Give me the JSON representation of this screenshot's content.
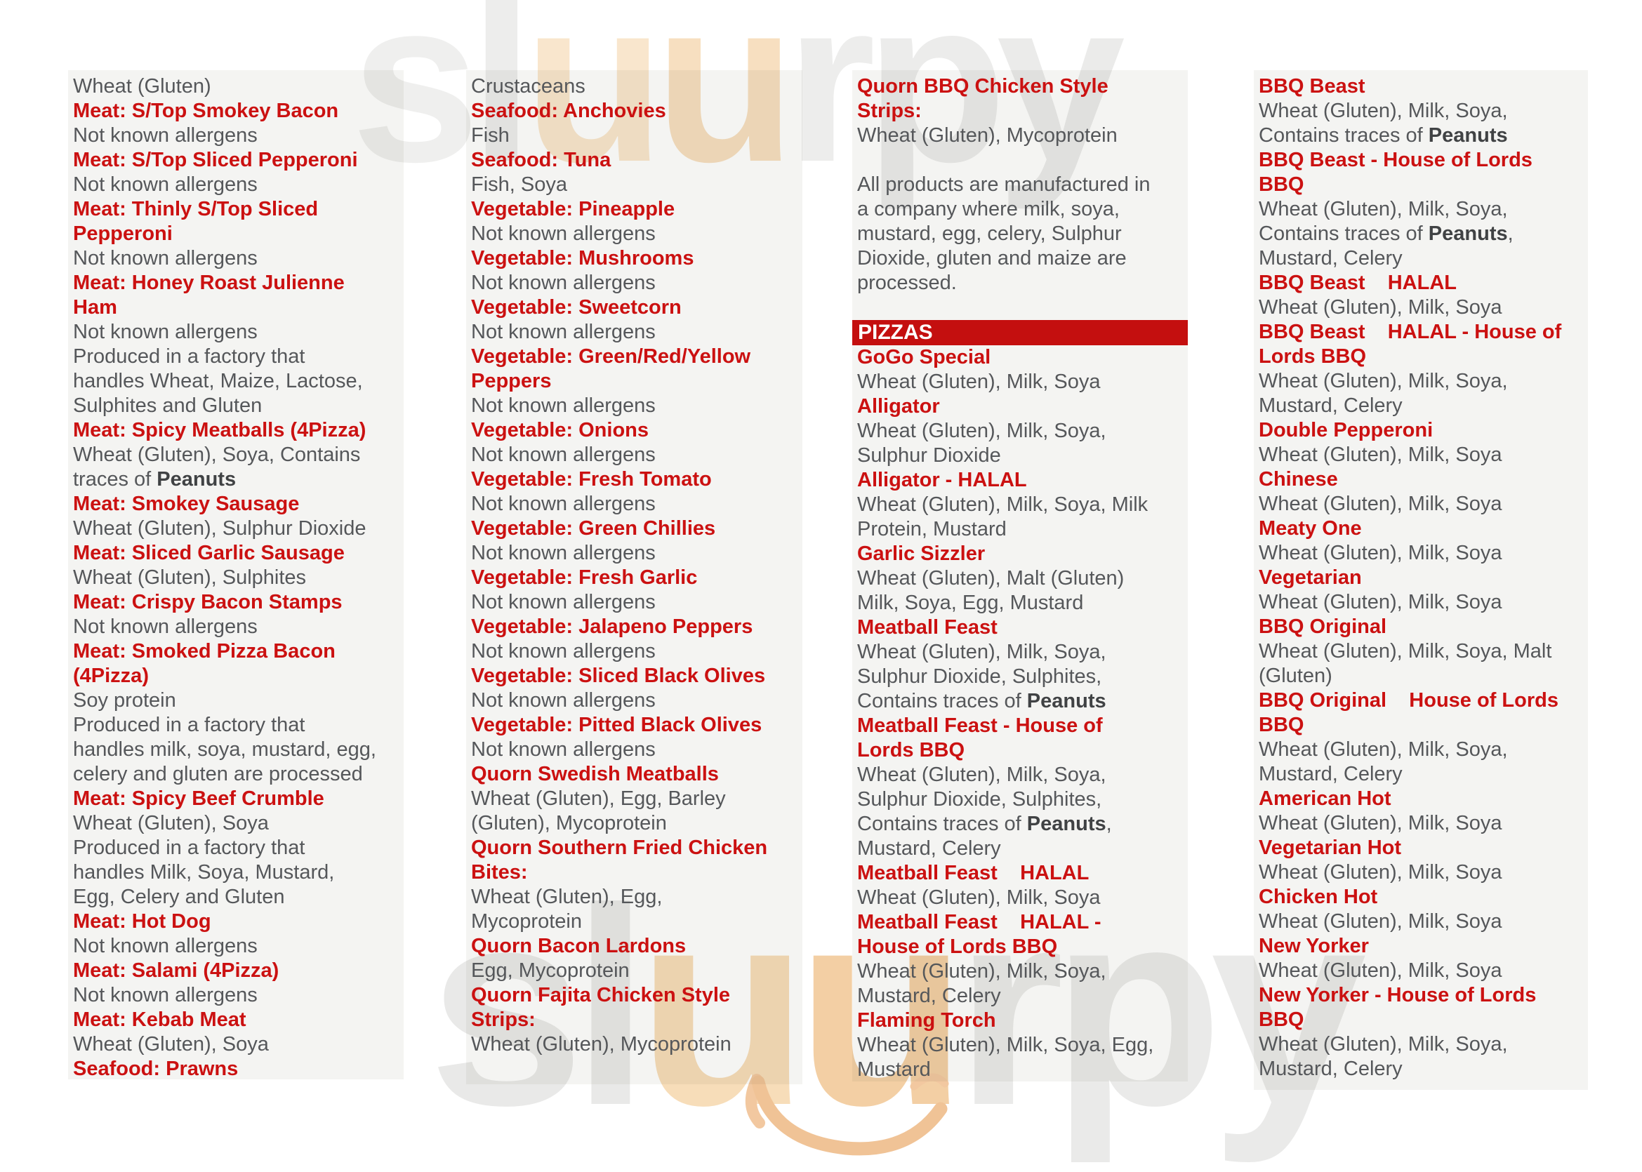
{
  "colors": {
    "heading_red": "#cb1111",
    "body_gray": "#55575a",
    "bold_gray": "#404244",
    "box_bg": "#f4f4f2",
    "bar_bg": "#c40f0f",
    "bar_text": "#ffffff",
    "watermark_gray": "#ebebeb",
    "watermark_orange_light": "#f8e3c8",
    "watermark_orange": "#f4d2a6"
  },
  "watermark": {
    "text": "sluurpy",
    "top_letters": [
      {
        "ch": "s",
        "color": "#efefee"
      },
      {
        "ch": "l",
        "color": "#ededec"
      },
      {
        "ch": "u",
        "color": "#f9e6cd"
      },
      {
        "ch": "u",
        "color": "#f7dfc0"
      },
      {
        "ch": "r",
        "color": "#ededec"
      },
      {
        "ch": "p",
        "color": "#ececeb"
      },
      {
        "ch": "y",
        "color": "#ebebea"
      }
    ],
    "bottom_letters": [
      {
        "ch": "s",
        "color": "#e9e9e8"
      },
      {
        "ch": "l",
        "color": "#e9e9e8"
      },
      {
        "ch": "u",
        "color": "#f7ddb9"
      },
      {
        "ch": "u",
        "color": "#f3cfa4"
      },
      {
        "ch": "r",
        "color": "#eaeae9"
      },
      {
        "ch": "p",
        "color": "#eaeae9"
      },
      {
        "ch": "y",
        "color": "#eaeae9"
      }
    ]
  },
  "pizzas_bar_label": "PIZZAS",
  "columns": [
    {
      "lines": [
        {
          "t": "body",
          "text": "Wheat (Gluten)"
        },
        {
          "t": "head",
          "text": "Meat: S/Top Smokey Bacon"
        },
        {
          "t": "body",
          "text": "Not known allergens"
        },
        {
          "t": "head",
          "text": "Meat: S/Top Sliced Pepperoni"
        },
        {
          "t": "body",
          "text": "Not known allergens"
        },
        {
          "t": "head",
          "text": "Meat: Thinly S/Top Sliced"
        },
        {
          "t": "head",
          "text": "Pepperoni"
        },
        {
          "t": "body",
          "text": "Not known allergens"
        },
        {
          "t": "head",
          "text": "Meat: Honey Roast Julienne"
        },
        {
          "t": "head",
          "text": "Ham"
        },
        {
          "t": "body",
          "text": "Not known allergens"
        },
        {
          "t": "body",
          "text": "Produced in a factory that"
        },
        {
          "t": "body",
          "text": "handles Wheat, Maize, Lactose,"
        },
        {
          "t": "body",
          "text": "Sulphites and Gluten"
        },
        {
          "t": "head",
          "text": "Meat: Spicy Meatballs (4Pizza)"
        },
        {
          "t": "body",
          "text": "Wheat (Gluten), Soya, Contains"
        },
        {
          "t": "body",
          "runs": [
            {
              "text": "traces of "
            },
            {
              "text": "Peanuts",
              "b": true
            }
          ]
        },
        {
          "t": "head",
          "text": "Meat: Smokey Sausage"
        },
        {
          "t": "body",
          "text": "Wheat (Gluten), Sulphur Dioxide"
        },
        {
          "t": "head",
          "text": "Meat: Sliced Garlic Sausage"
        },
        {
          "t": "body",
          "text": "Wheat (Gluten), Sulphites"
        },
        {
          "t": "head",
          "text": "Meat: Crispy Bacon Stamps"
        },
        {
          "t": "body",
          "text": "Not known allergens"
        },
        {
          "t": "head",
          "text": "Meat: Smoked Pizza Bacon"
        },
        {
          "t": "head",
          "text": "(4Pizza)"
        },
        {
          "t": "body",
          "text": "Soy protein"
        },
        {
          "t": "body",
          "text": "Produced in a factory that"
        },
        {
          "t": "body",
          "text": "handles milk, soya, mustard, egg,"
        },
        {
          "t": "body",
          "text": "celery and gluten are processed"
        },
        {
          "t": "head",
          "text": "Meat: Spicy Beef Crumble"
        },
        {
          "t": "body",
          "text": "Wheat (Gluten), Soya"
        },
        {
          "t": "body",
          "text": "Produced in a factory that"
        },
        {
          "t": "body",
          "text": "handles Milk, Soya, Mustard,"
        },
        {
          "t": "body",
          "text": "Egg, Celery and Gluten"
        },
        {
          "t": "head",
          "text": "Meat: Hot Dog"
        },
        {
          "t": "body",
          "text": "Not known allergens"
        },
        {
          "t": "head",
          "text": "Meat: Salami (4Pizza)"
        },
        {
          "t": "body",
          "text": "Not known allergens"
        },
        {
          "t": "head",
          "text": "Meat: Kebab Meat"
        },
        {
          "t": "body",
          "text": "Wheat (Gluten), Soya"
        },
        {
          "t": "head",
          "text": "Seafood: Prawns"
        }
      ]
    },
    {
      "lines": [
        {
          "t": "body",
          "text": "Crustaceans"
        },
        {
          "t": "head",
          "text": "Seafood: Anchovies"
        },
        {
          "t": "body",
          "text": "Fish"
        },
        {
          "t": "head",
          "text": "Seafood: Tuna"
        },
        {
          "t": "body",
          "text": "Fish, Soya"
        },
        {
          "t": "head",
          "text": "Vegetable: Pineapple"
        },
        {
          "t": "body",
          "text": "Not known allergens"
        },
        {
          "t": "head",
          "text": "Vegetable: Mushrooms"
        },
        {
          "t": "body",
          "text": "Not known allergens"
        },
        {
          "t": "head",
          "text": "Vegetable: Sweetcorn"
        },
        {
          "t": "body",
          "text": "Not known allergens"
        },
        {
          "t": "head",
          "text": "Vegetable: Green/Red/Yellow"
        },
        {
          "t": "head",
          "text": "Peppers"
        },
        {
          "t": "body",
          "text": "Not known allergens"
        },
        {
          "t": "head",
          "text": "Vegetable: Onions"
        },
        {
          "t": "body",
          "text": "Not known allergens"
        },
        {
          "t": "head",
          "text": "Vegetable: Fresh Tomato"
        },
        {
          "t": "body",
          "text": "Not known allergens"
        },
        {
          "t": "head",
          "text": "Vegetable: Green Chillies"
        },
        {
          "t": "body",
          "text": "Not known allergens"
        },
        {
          "t": "head",
          "text": "Vegetable: Fresh Garlic"
        },
        {
          "t": "body",
          "text": "Not known allergens"
        },
        {
          "t": "head",
          "text": "Vegetable: Jalapeno Peppers"
        },
        {
          "t": "body",
          "text": "Not known allergens"
        },
        {
          "t": "head",
          "text": "Vegetable: Sliced Black Olives"
        },
        {
          "t": "body",
          "text": "Not known allergens"
        },
        {
          "t": "head",
          "text": "Vegetable: Pitted Black Olives"
        },
        {
          "t": "body",
          "text": "Not known allergens"
        },
        {
          "t": "head",
          "text": "Quorn Swedish Meatballs"
        },
        {
          "t": "body",
          "text": "Wheat (Gluten), Egg, Barley"
        },
        {
          "t": "body",
          "text": "(Gluten), Mycoprotein"
        },
        {
          "t": "head",
          "text": "Quorn Southern Fried Chicken"
        },
        {
          "t": "head",
          "text": "Bites:"
        },
        {
          "t": "body",
          "text": "Wheat (Gluten), Egg,"
        },
        {
          "t": "body",
          "text": "Mycoprotein"
        },
        {
          "t": "head",
          "text": "Quorn Bacon Lardons"
        },
        {
          "t": "body",
          "text": "Egg, Mycoprotein"
        },
        {
          "t": "head",
          "text": "Quorn Fajita Chicken Style"
        },
        {
          "t": "head",
          "text": "Strips:"
        },
        {
          "t": "body",
          "text": "Wheat (Gluten), Mycoprotein"
        }
      ]
    },
    {
      "lines": [
        {
          "t": "head",
          "text": "Quorn BBQ Chicken Style"
        },
        {
          "t": "head",
          "text": "Strips:"
        },
        {
          "t": "body",
          "text": "Wheat (Gluten), Mycoprotein"
        },
        {
          "t": "gap"
        },
        {
          "t": "body",
          "text": "All products are manufactured in"
        },
        {
          "t": "body",
          "text": "a company where milk, soya,"
        },
        {
          "t": "body",
          "text": "mustard, egg, celery, Sulphur"
        },
        {
          "t": "body",
          "text": "Dioxide, gluten and maize are"
        },
        {
          "t": "body",
          "text": "processed."
        },
        {
          "t": "gap"
        },
        {
          "t": "bar"
        },
        {
          "t": "head",
          "text": "GoGo Special"
        },
        {
          "t": "body",
          "text": "Wheat (Gluten), Milk, Soya"
        },
        {
          "t": "head",
          "text": "Alligator"
        },
        {
          "t": "body",
          "text": "Wheat (Gluten), Milk, Soya,"
        },
        {
          "t": "body",
          "text": "Sulphur Dioxide"
        },
        {
          "t": "head",
          "text": "Alligator - HALAL"
        },
        {
          "t": "body",
          "text": "Wheat (Gluten), Milk, Soya, Milk"
        },
        {
          "t": "body",
          "text": "Protein, Mustard"
        },
        {
          "t": "head",
          "text": "Garlic Sizzler"
        },
        {
          "t": "body",
          "text": "Wheat (Gluten), Malt (Gluten)"
        },
        {
          "t": "body",
          "text": "Milk, Soya, Egg, Mustard"
        },
        {
          "t": "head",
          "text": "Meatball Feast"
        },
        {
          "t": "body",
          "text": "Wheat (Gluten), Milk, Soya,"
        },
        {
          "t": "body",
          "text": "Sulphur Dioxide, Sulphites,"
        },
        {
          "t": "body",
          "runs": [
            {
              "text": "Contains traces of "
            },
            {
              "text": "Peanuts",
              "b": true
            }
          ]
        },
        {
          "t": "head",
          "text": "Meatball Feast - House of"
        },
        {
          "t": "head",
          "text": "Lords BBQ"
        },
        {
          "t": "body",
          "text": "Wheat (Gluten), Milk, Soya,"
        },
        {
          "t": "body",
          "text": "Sulphur Dioxide, Sulphites,"
        },
        {
          "t": "body",
          "runs": [
            {
              "text": "Contains traces of "
            },
            {
              "text": "Peanuts",
              "b": true
            },
            {
              "text": ","
            }
          ]
        },
        {
          "t": "body",
          "text": "Mustard, Celery"
        },
        {
          "t": "head",
          "text": "Meatball Feast    HALAL"
        },
        {
          "t": "body",
          "text": "Wheat (Gluten), Milk, Soya"
        },
        {
          "t": "head",
          "text": "Meatball Feast    HALAL -"
        },
        {
          "t": "head",
          "text": "House of Lords BBQ"
        },
        {
          "t": "body",
          "text": "Wheat (Gluten), Milk, Soya,"
        },
        {
          "t": "body",
          "text": "Mustard, Celery"
        },
        {
          "t": "head",
          "text": "Flaming Torch"
        },
        {
          "t": "body",
          "text": "Wheat (Gluten), Milk, Soya, Egg,"
        },
        {
          "t": "body",
          "text": "Mustard"
        }
      ]
    },
    {
      "lines": [
        {
          "t": "head",
          "text": "BBQ Beast"
        },
        {
          "t": "body",
          "text": "Wheat (Gluten), Milk, Soya,"
        },
        {
          "t": "body",
          "runs": [
            {
              "text": "Contains traces of "
            },
            {
              "text": "Peanuts",
              "b": true
            }
          ]
        },
        {
          "t": "head",
          "text": "BBQ Beast - House of Lords"
        },
        {
          "t": "head",
          "text": "BBQ"
        },
        {
          "t": "body",
          "text": "Wheat (Gluten), Milk, Soya,"
        },
        {
          "t": "body",
          "runs": [
            {
              "text": "Contains traces of "
            },
            {
              "text": "Peanuts",
              "b": true
            },
            {
              "text": ","
            }
          ]
        },
        {
          "t": "body",
          "text": "Mustard, Celery"
        },
        {
          "t": "head",
          "text": "BBQ Beast    HALAL"
        },
        {
          "t": "body",
          "text": "Wheat (Gluten), Milk, Soya"
        },
        {
          "t": "head",
          "text": "BBQ Beast    HALAL - House of"
        },
        {
          "t": "head",
          "text": "Lords BBQ"
        },
        {
          "t": "body",
          "text": "Wheat (Gluten), Milk, Soya,"
        },
        {
          "t": "body",
          "text": "Mustard, Celery"
        },
        {
          "t": "head",
          "text": "Double Pepperoni"
        },
        {
          "t": "body",
          "text": "Wheat (Gluten), Milk, Soya"
        },
        {
          "t": "head",
          "text": "Chinese"
        },
        {
          "t": "body",
          "text": "Wheat (Gluten), Milk, Soya"
        },
        {
          "t": "head",
          "text": "Meaty One"
        },
        {
          "t": "body",
          "text": "Wheat (Gluten), Milk, Soya"
        },
        {
          "t": "head",
          "text": "Vegetarian"
        },
        {
          "t": "body",
          "text": "Wheat (Gluten), Milk, Soya"
        },
        {
          "t": "head",
          "text": "BBQ Original"
        },
        {
          "t": "body",
          "text": "Wheat (Gluten), Milk, Soya, Malt"
        },
        {
          "t": "body",
          "text": "(Gluten)"
        },
        {
          "t": "head",
          "text": "BBQ Original    House of Lords"
        },
        {
          "t": "head",
          "text": "BBQ"
        },
        {
          "t": "body",
          "text": "Wheat (Gluten), Milk, Soya,"
        },
        {
          "t": "body",
          "text": "Mustard, Celery"
        },
        {
          "t": "head",
          "text": "American Hot"
        },
        {
          "t": "body",
          "text": "Wheat (Gluten), Milk, Soya"
        },
        {
          "t": "head",
          "text": "Vegetarian Hot"
        },
        {
          "t": "body",
          "text": "Wheat (Gluten), Milk, Soya"
        },
        {
          "t": "head",
          "text": "Chicken Hot"
        },
        {
          "t": "body",
          "text": "Wheat (Gluten), Milk, Soya"
        },
        {
          "t": "head",
          "text": "New Yorker"
        },
        {
          "t": "body",
          "text": "Wheat (Gluten), Milk, Soya"
        },
        {
          "t": "head",
          "text": "New Yorker - House of Lords"
        },
        {
          "t": "head",
          "text": "BBQ"
        },
        {
          "t": "body",
          "text": "Wheat (Gluten), Milk, Soya,"
        },
        {
          "t": "body",
          "text": "Mustard, Celery"
        }
      ]
    }
  ]
}
